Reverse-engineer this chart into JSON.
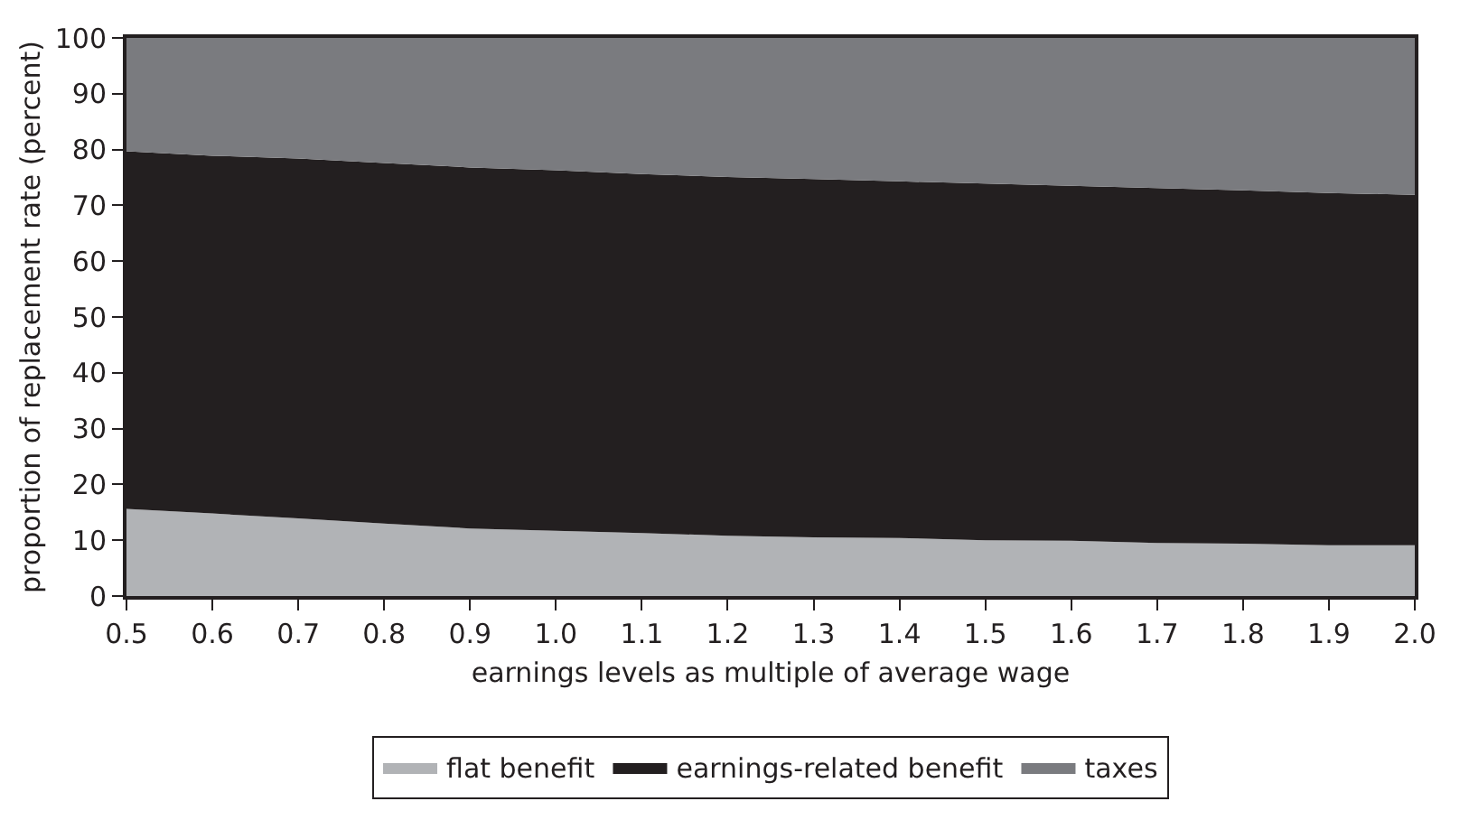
{
  "chart_data": {
    "type": "area",
    "stacked": true,
    "xlabel": "earnings levels as multiple of average wage",
    "ylabel": "proportion of replacement rate (percent)",
    "x": [
      0.5,
      0.6,
      0.7,
      0.8,
      0.9,
      1.0,
      1.1,
      1.2,
      1.3,
      1.4,
      1.5,
      1.6,
      1.7,
      1.8,
      1.9,
      2.0
    ],
    "series": [
      {
        "name": "flat benefit",
        "color": "#b1b3b6",
        "values": [
          15.6,
          14.8,
          13.9,
          13.0,
          12.1,
          11.7,
          11.3,
          10.8,
          10.5,
          10.4,
          10.0,
          9.9,
          9.5,
          9.4,
          9.1,
          9.1
        ]
      },
      {
        "name": "earnings-related benefit",
        "color": "#231f20",
        "values": [
          64.1,
          64.1,
          64.5,
          64.6,
          64.7,
          64.6,
          64.3,
          64.3,
          64.2,
          63.9,
          63.9,
          63.6,
          63.6,
          63.3,
          63.1,
          62.8
        ]
      },
      {
        "name": "taxes",
        "color": "#7a7b7f",
        "values": [
          20.3,
          21.1,
          21.6,
          22.4,
          23.2,
          23.7,
          24.4,
          24.9,
          25.3,
          25.7,
          26.1,
          26.5,
          26.9,
          27.3,
          27.8,
          28.1
        ]
      }
    ],
    "xlim": [
      0.5,
      2.0
    ],
    "xticks": [
      {
        "value": 0.5,
        "label": "0.5"
      },
      {
        "value": 0.6,
        "label": "0.6"
      },
      {
        "value": 0.7,
        "label": "0.7"
      },
      {
        "value": 0.8,
        "label": "0.8"
      },
      {
        "value": 0.9,
        "label": "0.9"
      },
      {
        "value": 1.0,
        "label": "1.0"
      },
      {
        "value": 1.1,
        "label": "1.1"
      },
      {
        "value": 1.2,
        "label": "1.2"
      },
      {
        "value": 1.3,
        "label": "1.3"
      },
      {
        "value": 1.4,
        "label": "1.4"
      },
      {
        "value": 1.5,
        "label": "1.5"
      },
      {
        "value": 1.6,
        "label": "1.6"
      },
      {
        "value": 1.7,
        "label": "1.7"
      },
      {
        "value": 1.8,
        "label": "1.8"
      },
      {
        "value": 1.9,
        "label": "1.9"
      },
      {
        "value": 2.0,
        "label": "2.0"
      }
    ],
    "ylim": [
      0,
      100
    ],
    "yticks": [
      0,
      10,
      20,
      30,
      40,
      50,
      60,
      70,
      80,
      90,
      100
    ],
    "legend": "bottom"
  }
}
